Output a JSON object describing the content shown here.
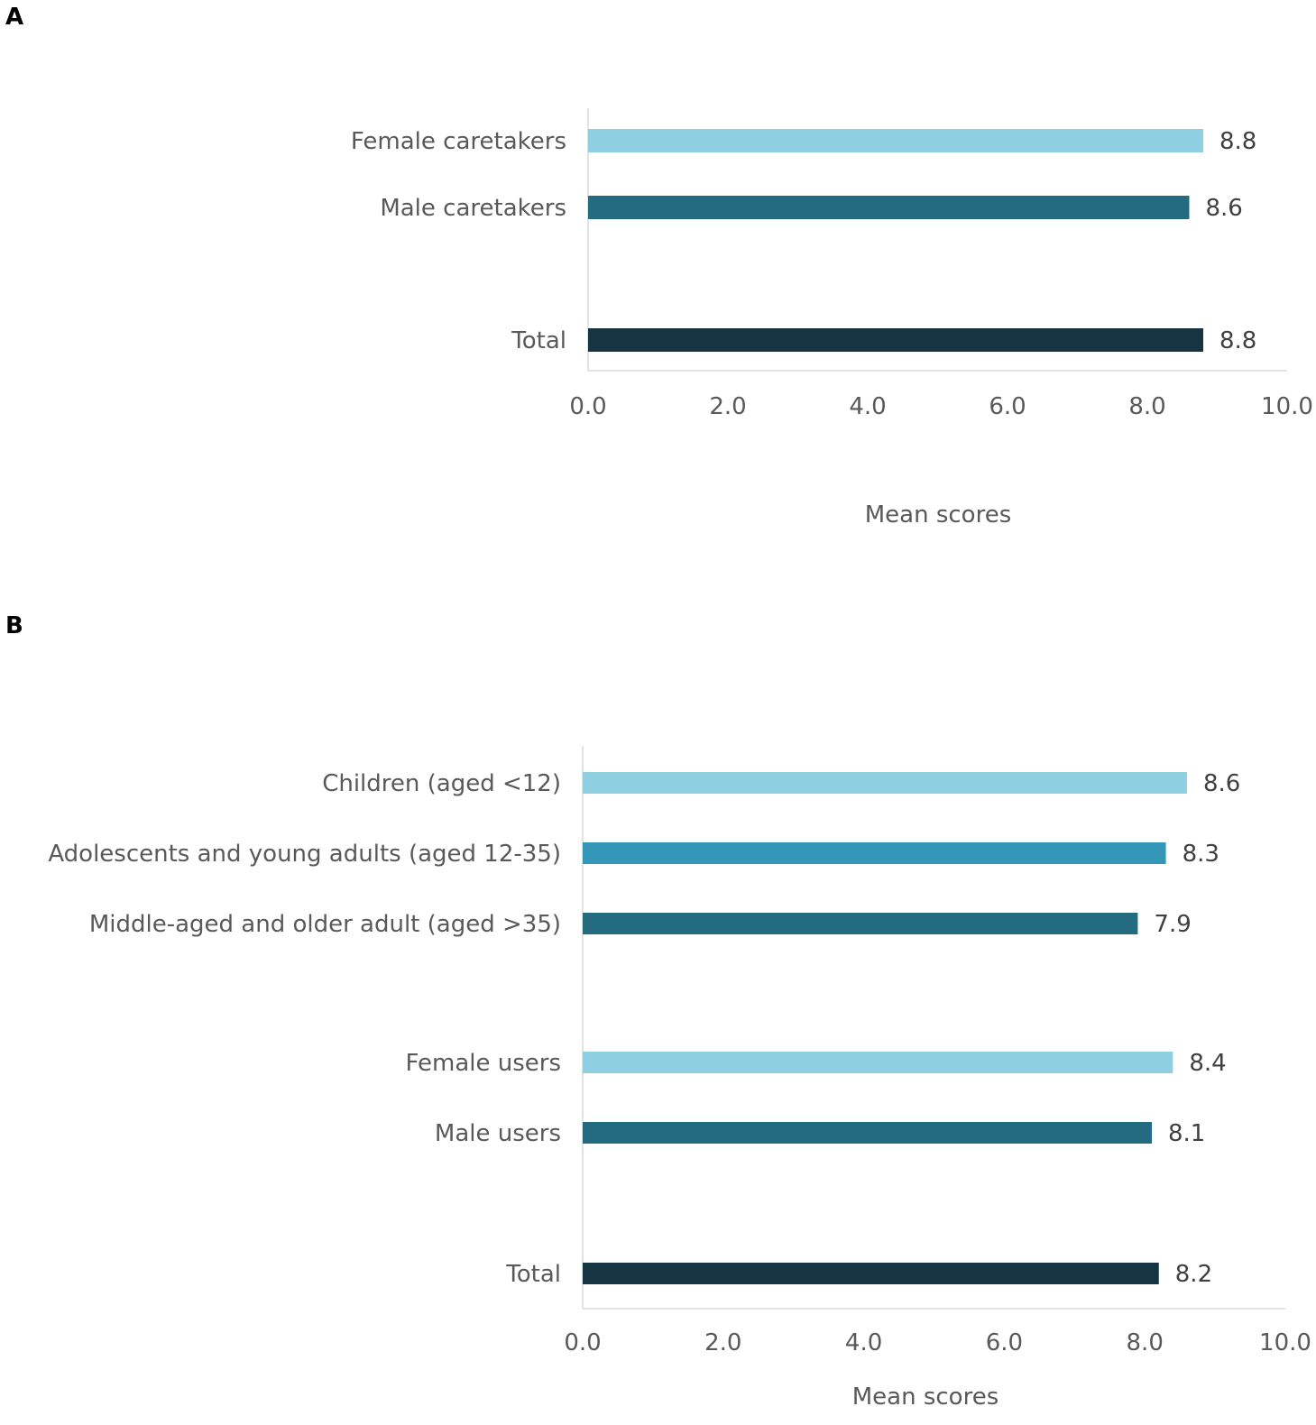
{
  "chart_data": [
    {
      "type": "bar",
      "orientation": "horizontal",
      "panel": "A",
      "categories": [
        "Female caretakers",
        "Male caretakers",
        "Total"
      ],
      "values": [
        8.8,
        8.6,
        8.8
      ],
      "value_labels": [
        "8.8",
        "8.6",
        "8.8"
      ],
      "colors": [
        "#8ecfe2",
        "#246b82",
        "#163542"
      ],
      "xlabel": "Mean scores",
      "ylabel": "",
      "xlim": [
        0,
        10
      ],
      "xticks": [
        "0.0",
        "2.0",
        "4.0",
        "6.0",
        "8.0",
        "10.0"
      ],
      "grid": false,
      "legend": "none"
    },
    {
      "type": "bar",
      "orientation": "horizontal",
      "panel": "B",
      "categories": [
        "Children (aged <12)",
        "Adolescents and young adults (aged 12-35)",
        "Middle-aged and older adult (aged >35)",
        "Female users",
        "Male users",
        "Total"
      ],
      "values": [
        8.6,
        8.3,
        7.9,
        8.4,
        8.1,
        8.2
      ],
      "value_labels": [
        "8.6",
        "8.3",
        "7.9",
        "8.4",
        "8.1",
        "8.2"
      ],
      "colors": [
        "#8ecfe2",
        "#3597b8",
        "#246b82",
        "#8ecfe2",
        "#246b82",
        "#163542"
      ],
      "xlabel": "Mean scores",
      "ylabel": "",
      "xlim": [
        0,
        10
      ],
      "xticks": [
        "0.0",
        "2.0",
        "4.0",
        "6.0",
        "8.0",
        "10.0"
      ],
      "grid": false,
      "legend": "none"
    }
  ]
}
